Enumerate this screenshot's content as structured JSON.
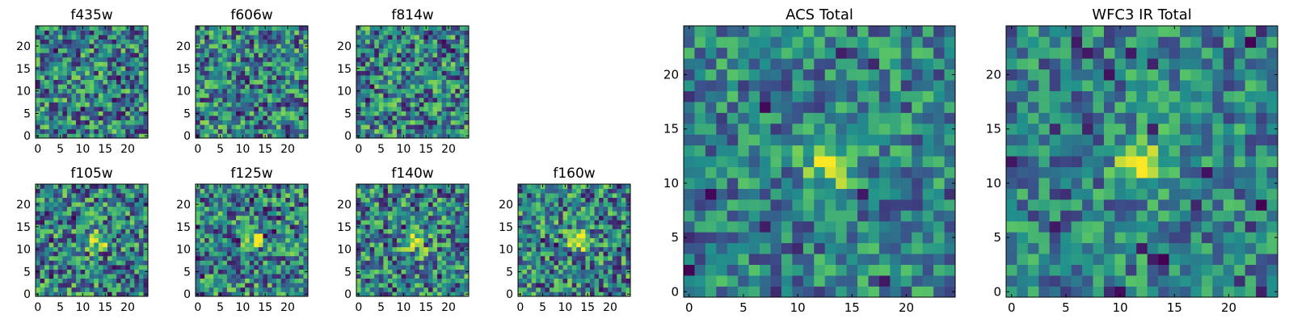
{
  "figure": {
    "colormap": "viridis",
    "colormap_stops": [
      "#440154",
      "#3b528b",
      "#21918c",
      "#5ec962",
      "#fde725"
    ],
    "background": "#ffffff"
  },
  "chart_data": [
    {
      "type": "heatmap",
      "title": "f435w",
      "grid_size": [
        25,
        25
      ],
      "xlim": [
        0,
        24
      ],
      "ylim": [
        0,
        24
      ],
      "xticks": [
        "0",
        "5",
        "10",
        "15",
        "20"
      ],
      "yticks": [
        "0",
        "5",
        "10",
        "15",
        "20"
      ],
      "value_range": [
        0,
        1
      ],
      "values_note": "per-pixel noise values (approximate)"
    },
    {
      "type": "heatmap",
      "title": "f606w",
      "grid_size": [
        25,
        25
      ],
      "xlim": [
        0,
        24
      ],
      "ylim": [
        0,
        24
      ],
      "xticks": [
        "0",
        "5",
        "10",
        "15",
        "20"
      ],
      "yticks": [
        "0",
        "5",
        "10",
        "15",
        "20"
      ],
      "value_range": [
        0,
        1
      ]
    },
    {
      "type": "heatmap",
      "title": "f814w",
      "grid_size": [
        25,
        25
      ],
      "xlim": [
        0,
        24
      ],
      "ylim": [
        0,
        24
      ],
      "xticks": [
        "0",
        "5",
        "10",
        "15",
        "20"
      ],
      "yticks": [
        "0",
        "5",
        "10",
        "15",
        "20"
      ],
      "value_range": [
        0,
        1
      ]
    },
    {
      "type": "heatmap",
      "title": "f105w",
      "grid_size": [
        25,
        25
      ],
      "xlim": [
        0,
        24
      ],
      "ylim": [
        0,
        24
      ],
      "xticks": [
        "0",
        "5",
        "10",
        "15",
        "20"
      ],
      "yticks": [
        "0",
        "5",
        "10",
        "15",
        "20"
      ],
      "value_range": [
        0,
        1
      ],
      "source_peak": [
        13,
        12
      ]
    },
    {
      "type": "heatmap",
      "title": "f125w",
      "grid_size": [
        25,
        25
      ],
      "xlim": [
        0,
        24
      ],
      "ylim": [
        0,
        24
      ],
      "xticks": [
        "0",
        "5",
        "10",
        "15",
        "20"
      ],
      "yticks": [
        "0",
        "5",
        "10",
        "15",
        "20"
      ],
      "value_range": [
        0,
        1
      ],
      "source_peak": [
        13,
        12
      ]
    },
    {
      "type": "heatmap",
      "title": "f140w",
      "grid_size": [
        25,
        25
      ],
      "xlim": [
        0,
        24
      ],
      "ylim": [
        0,
        24
      ],
      "xticks": [
        "0",
        "5",
        "10",
        "15",
        "20"
      ],
      "yticks": [
        "0",
        "5",
        "10",
        "15",
        "20"
      ],
      "value_range": [
        0,
        1
      ],
      "source_peak": [
        13,
        12
      ]
    },
    {
      "type": "heatmap",
      "title": "f160w",
      "grid_size": [
        25,
        25
      ],
      "xlim": [
        0,
        24
      ],
      "ylim": [
        0,
        24
      ],
      "xticks": [
        "0",
        "5",
        "10",
        "15",
        "20"
      ],
      "yticks": [
        "0",
        "5",
        "10",
        "15",
        "20"
      ],
      "value_range": [
        0,
        1
      ],
      "source_peak": [
        13,
        12
      ]
    },
    {
      "type": "heatmap",
      "title": "ACS Total",
      "grid_size": [
        25,
        25
      ],
      "xlim": [
        0,
        24
      ],
      "ylim": [
        0,
        24
      ],
      "xticks": [
        "0",
        "5",
        "10",
        "15",
        "20"
      ],
      "yticks": [
        "0",
        "5",
        "10",
        "15",
        "20"
      ],
      "value_range": [
        0,
        1
      ],
      "source_peak": [
        13,
        12
      ]
    },
    {
      "type": "heatmap",
      "title": "WFC3 IR Total",
      "grid_size": [
        25,
        25
      ],
      "xlim": [
        0,
        24
      ],
      "ylim": [
        0,
        24
      ],
      "xticks": [
        "0",
        "5",
        "10",
        "15",
        "20"
      ],
      "yticks": [
        "0",
        "5",
        "10",
        "15",
        "20"
      ],
      "value_range": [
        0,
        1
      ],
      "source_peak": [
        12,
        12
      ]
    }
  ]
}
